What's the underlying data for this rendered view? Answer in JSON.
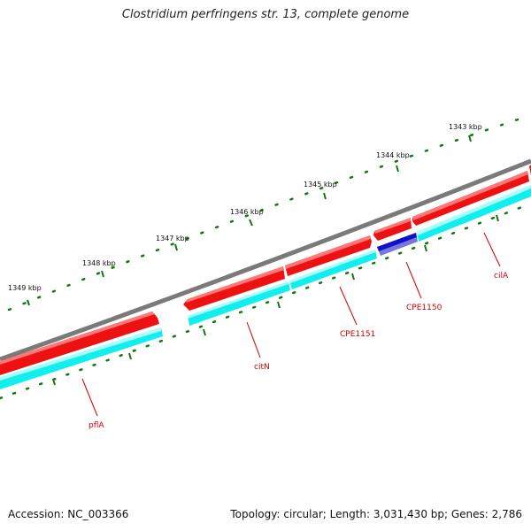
{
  "title": "Clostridium perfringens str. 13, complete genome",
  "footer": {
    "accession": "Accession: NC_003366",
    "summary": "Topology: circular; Length: 3,031,430 bp; Genes: 2,786"
  },
  "colors": {
    "backbone": "#7a7a7a",
    "forward_gene": "#ee1111",
    "forward_gene_highlight": "#ff7777",
    "cds_track": "#11eeee",
    "cds_highlight": "#aaffff",
    "selected_cds": "#1111cc",
    "selected_cds_lower": "#7777dd",
    "tick": "#117711",
    "gene_label": "#cc0000"
  },
  "scale_labels": [
    "1343 kbp",
    "1344 kbp",
    "1345 kbp",
    "1346 kbp",
    "1347 kbp",
    "1348 kbp",
    "1349 kbp"
  ],
  "gene_labels": [
    "cilA",
    "CPE1150",
    "CPE1151",
    "citN",
    "pflA"
  ]
}
